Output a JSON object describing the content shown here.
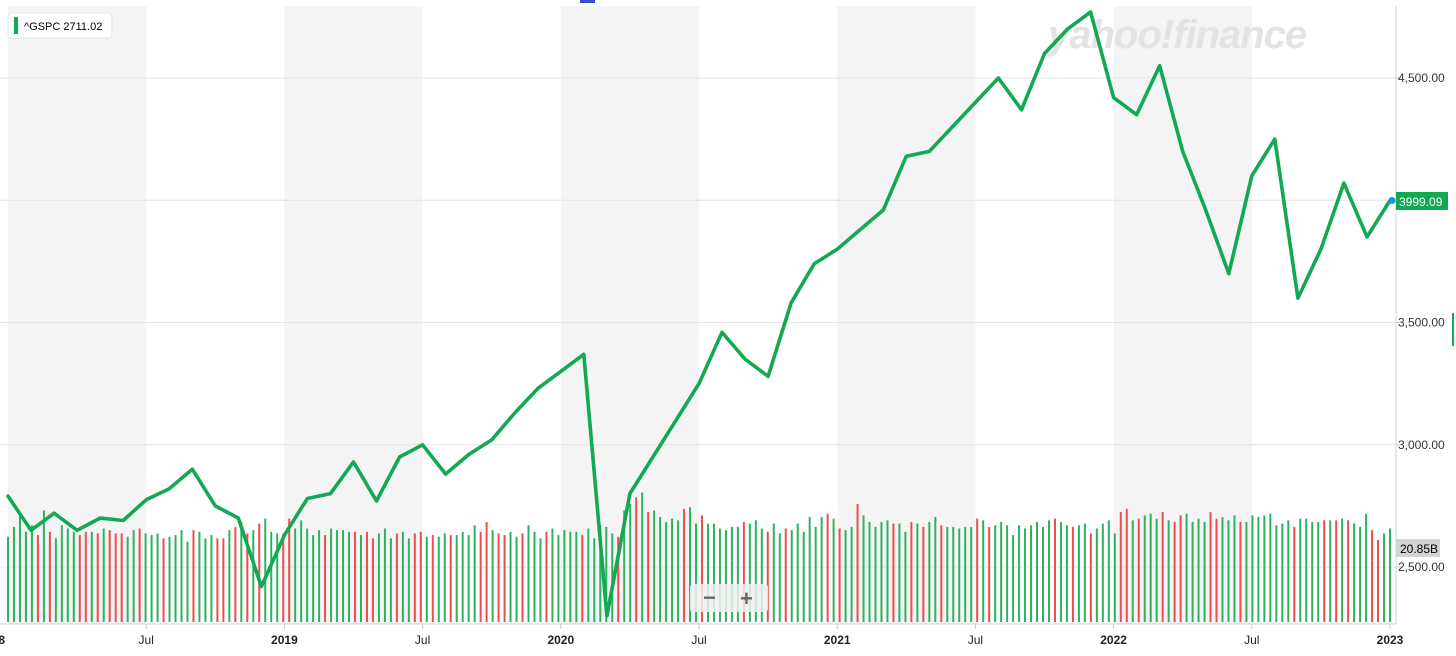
{
  "watermark": "yahoo!finance",
  "legend": {
    "label": "^GSPC 2711.02"
  },
  "price_badge": "3999.09",
  "volume_badge": "20.85B",
  "zoom": {
    "minus_glyph": "−",
    "plus_glyph": "+"
  },
  "colors": {
    "line": "#13a854",
    "up_volume": "#2db35f",
    "down_volume": "#ef4d4d",
    "band": "#f4f4f4",
    "grid": "#e4e4e4",
    "badge": "#13a854",
    "volume_badge": "#d4d4d4",
    "last_point": "#1f8ee8"
  },
  "chart_data": {
    "type": "line",
    "title": "",
    "xlabel": "",
    "ylabel": "",
    "ylim": [
      2282,
      4815
    ],
    "xlim": [
      "2018-01",
      "2023-01"
    ],
    "grid": true,
    "legend_position": "top-left",
    "y_ticks": [
      "2,500.00",
      "3,000.00",
      "3,500.00",
      "4,500.00"
    ],
    "x_ticks": [
      {
        "label": "Jul",
        "x": "2018-07",
        "year": false
      },
      {
        "label": "2019",
        "x": "2019-01",
        "year": true
      },
      {
        "label": "Jul",
        "x": "2019-07",
        "year": false
      },
      {
        "label": "2020",
        "x": "2020-01",
        "year": true
      },
      {
        "label": "Jul",
        "x": "2020-07",
        "year": false
      },
      {
        "label": "2021",
        "x": "2021-01",
        "year": true
      },
      {
        "label": "Jul",
        "x": "2021-07",
        "year": false
      },
      {
        "label": "2022",
        "x": "2022-01",
        "year": true
      },
      {
        "label": "Jul",
        "x": "2022-07",
        "year": false
      },
      {
        "label": "2023",
        "x": "2023-01",
        "year": true
      }
    ],
    "x_edge_labels": [
      {
        "label": "8",
        "x": "2018-01"
      }
    ],
    "series": [
      {
        "name": "^GSPC",
        "points": [
          [
            "2018-01",
            2790
          ],
          [
            "2018-02",
            2650
          ],
          [
            "2018-03",
            2720
          ],
          [
            "2018-04",
            2650
          ],
          [
            "2018-05",
            2700
          ],
          [
            "2018-06",
            2690
          ],
          [
            "2018-07",
            2775
          ],
          [
            "2018-08",
            2820
          ],
          [
            "2018-09",
            2900
          ],
          [
            "2018-10",
            2750
          ],
          [
            "2018-11",
            2700
          ],
          [
            "2018-12",
            2420
          ],
          [
            "2019-01",
            2630
          ],
          [
            "2019-02",
            2780
          ],
          [
            "2019-03",
            2800
          ],
          [
            "2019-04",
            2930
          ],
          [
            "2019-05",
            2770
          ],
          [
            "2019-06",
            2950
          ],
          [
            "2019-07",
            3000
          ],
          [
            "2019-08",
            2880
          ],
          [
            "2019-09",
            2960
          ],
          [
            "2019-10",
            3020
          ],
          [
            "2019-11",
            3130
          ],
          [
            "2019-12",
            3230
          ],
          [
            "2020-01",
            3300
          ],
          [
            "2020-02",
            3370
          ],
          [
            "2020-03",
            2300
          ],
          [
            "2020-04",
            2800
          ],
          [
            "2020-05",
            2950
          ],
          [
            "2020-06",
            3100
          ],
          [
            "2020-07",
            3250
          ],
          [
            "2020-08",
            3460
          ],
          [
            "2020-09",
            3350
          ],
          [
            "2020-10",
            3280
          ],
          [
            "2020-11",
            3580
          ],
          [
            "2020-12",
            3740
          ],
          [
            "2021-01",
            3800
          ],
          [
            "2021-02",
            3880
          ],
          [
            "2021-03",
            3960
          ],
          [
            "2021-04",
            4180
          ],
          [
            "2021-05",
            4200
          ],
          [
            "2021-06",
            4300
          ],
          [
            "2021-07",
            4400
          ],
          [
            "2021-08",
            4500
          ],
          [
            "2021-09",
            4370
          ],
          [
            "2021-10",
            4600
          ],
          [
            "2021-11",
            4700
          ],
          [
            "2021-12",
            4770
          ],
          [
            "2022-01",
            4420
          ],
          [
            "2022-02",
            4350
          ],
          [
            "2022-03",
            4550
          ],
          [
            "2022-04",
            4200
          ],
          [
            "2022-05",
            3960
          ],
          [
            "2022-06",
            3700
          ],
          [
            "2022-07",
            4100
          ],
          [
            "2022-08",
            4250
          ],
          [
            "2022-09",
            3600
          ],
          [
            "2022-10",
            3800
          ],
          [
            "2022-11",
            4070
          ],
          [
            "2022-12",
            3850
          ],
          [
            "2023-01",
            3999
          ]
        ]
      }
    ],
    "volume": {
      "ylim": [
        0,
        8.5
      ],
      "values": [
        [
          5.2,
          1
        ],
        [
          5.8,
          1
        ],
        [
          6.6,
          1
        ],
        [
          5.5,
          1
        ],
        [
          5.9,
          1
        ],
        [
          5.3,
          0
        ],
        [
          6.8,
          1
        ],
        [
          5.5,
          0
        ],
        [
          5.1,
          1
        ],
        [
          5.9,
          1
        ],
        [
          5.7,
          1
        ],
        [
          5.5,
          1
        ],
        [
          5.3,
          0
        ],
        [
          5.5,
          0
        ],
        [
          5.5,
          1
        ],
        [
          5.4,
          0
        ],
        [
          5.7,
          1
        ],
        [
          5.6,
          0
        ],
        [
          5.4,
          0
        ],
        [
          5.4,
          0
        ],
        [
          5.2,
          1
        ],
        [
          5.6,
          1
        ],
        [
          5.7,
          0
        ],
        [
          5.4,
          1
        ],
        [
          5.3,
          1
        ],
        [
          5.4,
          1
        ],
        [
          5.1,
          0
        ],
        [
          5.2,
          1
        ],
        [
          5.3,
          1
        ],
        [
          5.6,
          1
        ],
        [
          4.9,
          1
        ],
        [
          5.6,
          0
        ],
        [
          5.5,
          1
        ],
        [
          5.1,
          1
        ],
        [
          5.3,
          1
        ],
        [
          5.1,
          0
        ],
        [
          5.1,
          0
        ],
        [
          5.6,
          1
        ],
        [
          5.8,
          0
        ],
        [
          6.1,
          1
        ],
        [
          5.4,
          0
        ],
        [
          5.6,
          1
        ],
        [
          6.0,
          0
        ],
        [
          6.3,
          1
        ],
        [
          5.5,
          1
        ],
        [
          5.4,
          1
        ],
        [
          5.4,
          0
        ],
        [
          6.3,
          0
        ],
        [
          5.7,
          1
        ],
        [
          6.2,
          1
        ],
        [
          5.7,
          1
        ],
        [
          5.3,
          1
        ],
        [
          5.6,
          1
        ],
        [
          5.3,
          0
        ],
        [
          5.7,
          1
        ],
        [
          5.6,
          1
        ],
        [
          5.6,
          1
        ],
        [
          5.5,
          1
        ],
        [
          5.5,
          0
        ],
        [
          5.3,
          1
        ],
        [
          5.5,
          0
        ],
        [
          5.1,
          0
        ],
        [
          5.4,
          1
        ],
        [
          5.7,
          1
        ],
        [
          5.1,
          1
        ],
        [
          5.4,
          0
        ],
        [
          5.5,
          1
        ],
        [
          5.1,
          1
        ],
        [
          5.4,
          0
        ],
        [
          5.5,
          0
        ],
        [
          5.2,
          1
        ],
        [
          5.3,
          0
        ],
        [
          5.2,
          1
        ],
        [
          5.4,
          1
        ],
        [
          5.3,
          0
        ],
        [
          5.3,
          1
        ],
        [
          5.5,
          1
        ],
        [
          5.3,
          1
        ],
        [
          5.9,
          1
        ],
        [
          5.5,
          0
        ],
        [
          6.1,
          0
        ],
        [
          5.6,
          1
        ],
        [
          5.4,
          0
        ],
        [
          5.3,
          0
        ],
        [
          5.5,
          1
        ],
        [
          5.2,
          1
        ],
        [
          5.4,
          0
        ],
        [
          5.9,
          1
        ],
        [
          5.5,
          1
        ],
        [
          5.1,
          1
        ],
        [
          5.5,
          0
        ],
        [
          5.7,
          1
        ],
        [
          5.3,
          1
        ],
        [
          5.6,
          1
        ],
        [
          5.5,
          1
        ],
        [
          5.5,
          1
        ],
        [
          5.3,
          0
        ],
        [
          5.7,
          1
        ],
        [
          5.1,
          1
        ],
        [
          5.9,
          1
        ],
        [
          5.8,
          1
        ],
        [
          5.4,
          1
        ],
        [
          5.2,
          0
        ],
        [
          6.8,
          1
        ],
        [
          7.2,
          1
        ],
        [
          7.6,
          0
        ],
        [
          7.9,
          1
        ],
        [
          6.7,
          0
        ],
        [
          6.8,
          1
        ],
        [
          6.4,
          1
        ],
        [
          6.1,
          1
        ],
        [
          6.3,
          1
        ],
        [
          6.2,
          1
        ],
        [
          6.9,
          0
        ],
        [
          7.0,
          1
        ],
        [
          6.0,
          1
        ],
        [
          6.5,
          0
        ],
        [
          6.0,
          1
        ],
        [
          6.0,
          1
        ],
        [
          5.7,
          1
        ],
        [
          5.6,
          1
        ],
        [
          5.8,
          1
        ],
        [
          5.8,
          1
        ],
        [
          6.1,
          0
        ],
        [
          6.0,
          1
        ],
        [
          6.2,
          1
        ],
        [
          5.7,
          1
        ],
        [
          5.5,
          0
        ],
        [
          6.0,
          1
        ],
        [
          5.4,
          1
        ],
        [
          5.7,
          0
        ],
        [
          5.6,
          1
        ],
        [
          6.0,
          1
        ],
        [
          5.5,
          1
        ],
        [
          6.4,
          1
        ],
        [
          5.8,
          1
        ],
        [
          6.4,
          1
        ],
        [
          6.6,
          0
        ],
        [
          6.3,
          1
        ],
        [
          5.7,
          0
        ],
        [
          5.6,
          1
        ],
        [
          5.8,
          1
        ],
        [
          7.2,
          0
        ],
        [
          6.5,
          1
        ],
        [
          6.1,
          1
        ],
        [
          5.8,
          1
        ],
        [
          6.1,
          1
        ],
        [
          6.2,
          1
        ],
        [
          6.0,
          0
        ],
        [
          6.0,
          1
        ],
        [
          5.5,
          1
        ],
        [
          6.1,
          0
        ],
        [
          6.0,
          1
        ],
        [
          5.8,
          0
        ],
        [
          6.1,
          1
        ],
        [
          6.4,
          1
        ],
        [
          5.9,
          0
        ],
        [
          5.8,
          1
        ],
        [
          5.8,
          1
        ],
        [
          5.7,
          1
        ],
        [
          5.8,
          1
        ],
        [
          5.8,
          1
        ],
        [
          6.3,
          0
        ],
        [
          6.2,
          1
        ],
        [
          5.8,
          0
        ],
        [
          5.9,
          1
        ],
        [
          6.1,
          1
        ],
        [
          5.9,
          1
        ],
        [
          5.3,
          1
        ],
        [
          5.9,
          1
        ],
        [
          5.7,
          1
        ],
        [
          5.9,
          1
        ],
        [
          6.1,
          1
        ],
        [
          5.8,
          1
        ],
        [
          6.2,
          1
        ],
        [
          6.3,
          0
        ],
        [
          6.1,
          1
        ],
        [
          5.9,
          1
        ],
        [
          5.8,
          0
        ],
        [
          5.9,
          1
        ],
        [
          6.0,
          1
        ],
        [
          5.4,
          0
        ],
        [
          5.7,
          1
        ],
        [
          6.0,
          1
        ],
        [
          6.2,
          1
        ],
        [
          5.4,
          1
        ],
        [
          6.7,
          0
        ],
        [
          6.9,
          0
        ],
        [
          6.2,
          1
        ],
        [
          6.3,
          0
        ],
        [
          6.5,
          1
        ],
        [
          6.6,
          1
        ],
        [
          6.3,
          1
        ],
        [
          6.7,
          0
        ],
        [
          6.2,
          1
        ],
        [
          6.1,
          0
        ],
        [
          6.5,
          0
        ],
        [
          6.6,
          1
        ],
        [
          6.1,
          1
        ],
        [
          6.3,
          1
        ],
        [
          6.1,
          1
        ],
        [
          6.7,
          0
        ],
        [
          6.3,
          0
        ],
        [
          6.4,
          1
        ],
        [
          6.2,
          1
        ],
        [
          6.5,
          1
        ],
        [
          6.1,
          0
        ],
        [
          6.1,
          1
        ],
        [
          6.5,
          1
        ],
        [
          6.4,
          1
        ],
        [
          6.5,
          1
        ],
        [
          6.6,
          1
        ],
        [
          5.9,
          1
        ],
        [
          6.0,
          1
        ],
        [
          6.2,
          1
        ],
        [
          5.8,
          0
        ],
        [
          6.3,
          1
        ],
        [
          6.3,
          1
        ],
        [
          6.1,
          1
        ],
        [
          6.1,
          1
        ],
        [
          6.2,
          0
        ],
        [
          6.2,
          1
        ],
        [
          6.2,
          0
        ],
        [
          6.3,
          1
        ],
        [
          6.2,
          0
        ],
        [
          6.0,
          1
        ],
        [
          5.8,
          1
        ],
        [
          6.6,
          1
        ],
        [
          5.6,
          0
        ],
        [
          5.0,
          0
        ],
        [
          5.4,
          1
        ],
        [
          5.7,
          1
        ]
      ]
    },
    "last_value": 3999.09
  }
}
